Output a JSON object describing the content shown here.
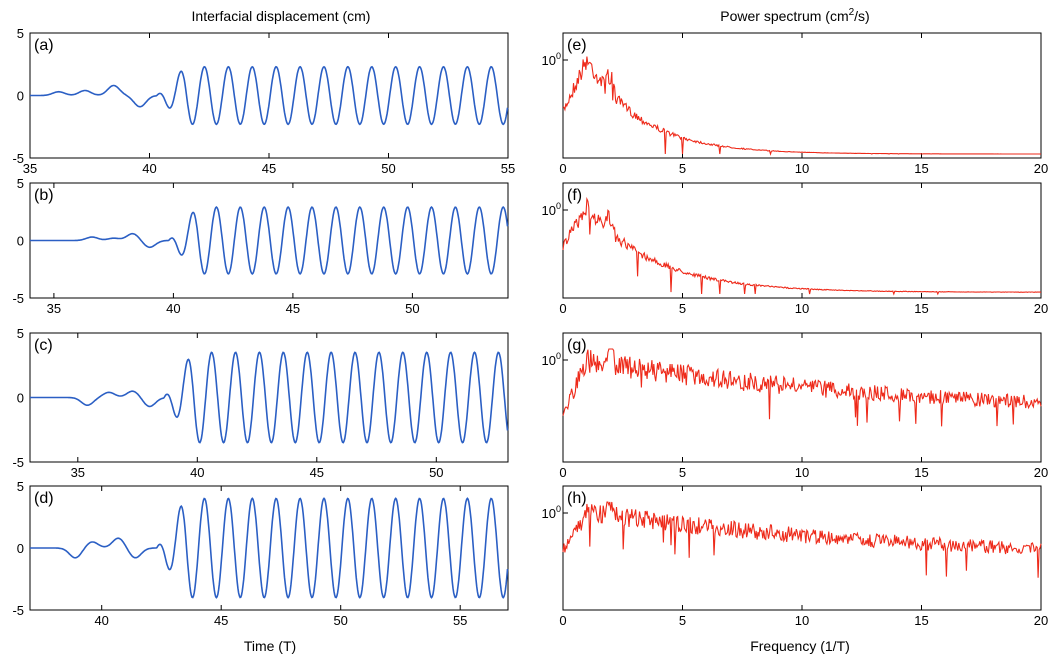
{
  "left_column_title": "Interfacial displacement (cm)",
  "right_column_title_prefix": "Power spectrum (cm",
  "right_column_title_sup": "2",
  "right_column_title_suffix": "/s)",
  "left_xlabel": "Time (T)",
  "right_xlabel": "Frequency (1/T)",
  "colors": {
    "time_series": "#2b5fc4",
    "spectrum": "#ee2a1a"
  },
  "chart_data": [
    {
      "panel": "(a)",
      "type": "line",
      "x_range": [
        35,
        55
      ],
      "ylim": [
        -5,
        5
      ],
      "xticks": [
        "35",
        "40",
        "45",
        "50",
        "55"
      ],
      "yticks": [
        "5",
        "0",
        "-5"
      ],
      "signal": {
        "onset": 40.3,
        "amplitude": 2.3,
        "period": 1.0,
        "pre": [
          [
            36.2,
            0.3
          ],
          [
            37.3,
            0.4
          ],
          [
            38.5,
            0.8
          ],
          [
            39.6,
            -0.9
          ]
        ]
      }
    },
    {
      "panel": "(b)",
      "type": "line",
      "x_range": [
        34,
        54
      ],
      "ylim": [
        -5,
        5
      ],
      "xticks": [
        "35",
        "40",
        "45",
        "50"
      ],
      "yticks": [
        "5",
        "0",
        "-5"
      ],
      "signal": {
        "onset": 39.8,
        "amplitude": 2.9,
        "period": 1.0,
        "pre": [
          [
            36.6,
            0.3
          ],
          [
            37.5,
            0.2
          ],
          [
            38.3,
            0.6
          ],
          [
            39.0,
            -0.6
          ]
        ]
      }
    },
    {
      "panel": "(c)",
      "type": "line",
      "x_range": [
        33,
        53
      ],
      "ylim": [
        -5,
        5
      ],
      "xticks": [
        "35",
        "40",
        "45",
        "50"
      ],
      "yticks": [
        "5",
        "0",
        "-5"
      ],
      "signal": {
        "onset": 38.6,
        "amplitude": 3.5,
        "period": 1.0,
        "pre": [
          [
            35.4,
            -0.6
          ],
          [
            36.3,
            0.4
          ],
          [
            37.3,
            0.5
          ],
          [
            38.0,
            -0.7
          ]
        ]
      }
    },
    {
      "panel": "(d)",
      "type": "line",
      "x_range": [
        37,
        57
      ],
      "ylim": [
        -5,
        5
      ],
      "xticks": [
        "40",
        "45",
        "50",
        "55"
      ],
      "yticks": [
        "5",
        "0",
        "-5"
      ],
      "signal": {
        "onset": 42.3,
        "amplitude": 4.0,
        "period": 1.0,
        "pre": [
          [
            38.9,
            -0.8
          ],
          [
            39.6,
            0.5
          ],
          [
            40.7,
            0.8
          ],
          [
            41.4,
            -0.8
          ]
        ]
      }
    },
    {
      "panel": "(e)",
      "type": "line",
      "x_range": [
        0,
        20
      ],
      "yscale": "log",
      "xticks": [
        "0",
        "5",
        "10",
        "15",
        "20"
      ],
      "ytick_label": "10",
      "ytick_exp": "0",
      "spectrum": {
        "start": 0.45,
        "peak": 1.0,
        "decay": 0.2,
        "noise": 0.09,
        "floor": 0.0
      }
    },
    {
      "panel": "(f)",
      "type": "line",
      "x_range": [
        0,
        20
      ],
      "yscale": "log",
      "xticks": [
        "0",
        "5",
        "10",
        "15",
        "20"
      ],
      "ytick_label": "10",
      "ytick_exp": "0",
      "spectrum": {
        "start": 0.55,
        "peak": 1.0,
        "decay": 0.16,
        "noise": 0.08,
        "floor": 0.02
      }
    },
    {
      "panel": "(g)",
      "type": "line",
      "x_range": [
        0,
        20
      ],
      "yscale": "log",
      "xticks": [
        "0",
        "5",
        "10",
        "15",
        "20"
      ],
      "ytick_label": "10",
      "ytick_exp": "0",
      "spectrum": {
        "start": 0.45,
        "peak": 1.0,
        "decay": 0.03,
        "noise": 0.1,
        "floor": 0.4
      }
    },
    {
      "panel": "(h)",
      "type": "line",
      "x_range": [
        0,
        20
      ],
      "yscale": "log",
      "xticks": [
        "0",
        "5",
        "10",
        "15",
        "20"
      ],
      "ytick_label": "10",
      "ytick_exp": "0",
      "spectrum": {
        "start": 0.6,
        "peak": 1.0,
        "decay": 0.03,
        "noise": 0.09,
        "floor": 0.45
      }
    }
  ]
}
